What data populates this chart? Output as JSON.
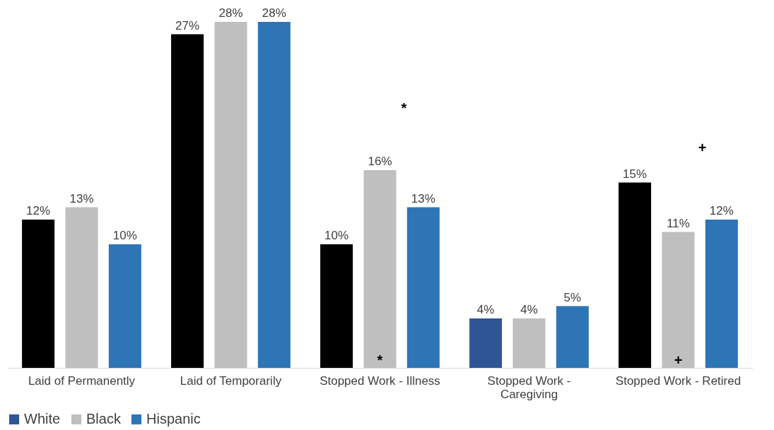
{
  "chart_data": {
    "type": "bar",
    "categories": [
      "Laid of Permanently",
      "Laid of Temporarily",
      "Stopped Work - Illness",
      "Stopped Work - Caregiving",
      "Stopped Work - Retired"
    ],
    "series": [
      {
        "name": "White",
        "color": "#2f5597",
        "colors": [
          "#000000",
          "#000000",
          "#000000",
          "#2f5597",
          "#000000"
        ],
        "values": [
          12,
          27,
          10,
          4,
          15
        ],
        "value_labels": [
          "12%",
          "27%",
          "10%",
          "4%",
          "15%"
        ]
      },
      {
        "name": "Black",
        "color": "#bfbfbf",
        "values": [
          13,
          28,
          16,
          4,
          11
        ],
        "value_labels": [
          "13%",
          "28%",
          "16%",
          "4%",
          "11%"
        ]
      },
      {
        "name": "Hispanic",
        "color": "#2e75b6",
        "values": [
          10,
          28,
          13,
          5,
          12
        ],
        "value_labels": [
          "10%",
          "28%",
          "13%",
          "5%",
          "12%"
        ]
      }
    ],
    "legend": "bottom",
    "annotations": [
      "*",
      "*",
      "+",
      "+"
    ]
  }
}
